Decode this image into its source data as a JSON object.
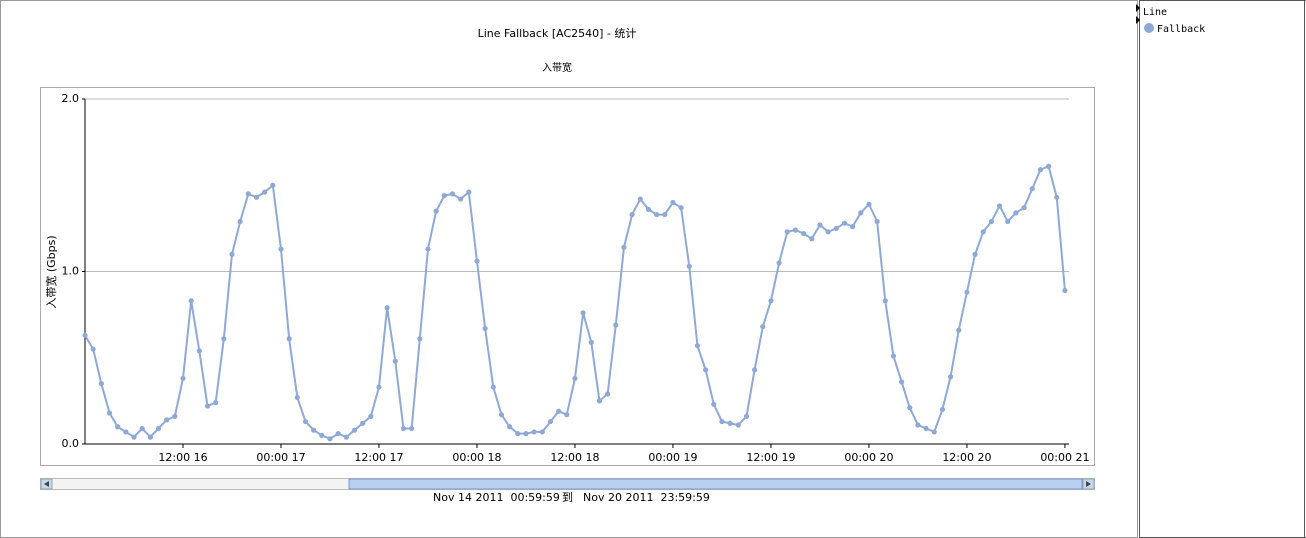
{
  "chart_data": {
    "type": "line",
    "title": "Line Fallback [AC2540] - 统计",
    "subtitle": "入带宽",
    "y_label": "入带宽 (Gbps)",
    "range": {
      "start": "Nov 14 2011  00:59:59",
      "separator": "到",
      "end": "Nov 20 2011  23:59:59"
    },
    "legend_title": "Line",
    "legend": "top-right",
    "grid": true,
    "x": [
      0,
      1,
      2,
      3,
      4,
      5,
      6,
      7,
      8,
      9,
      10,
      11,
      12,
      13,
      14,
      15,
      16,
      17,
      18,
      19,
      20,
      21,
      22,
      23,
      24,
      25,
      26,
      27,
      28,
      29,
      30,
      31,
      32,
      33,
      34,
      35,
      36,
      37,
      38,
      39,
      40,
      41,
      42,
      43,
      44,
      45,
      46,
      47,
      48,
      49,
      50,
      51,
      52,
      53,
      54,
      55,
      56,
      57,
      58,
      59,
      60,
      61,
      62,
      63,
      64,
      65,
      66,
      67,
      68,
      69,
      70,
      71,
      72,
      73,
      74,
      75,
      76,
      77,
      78,
      79,
      80,
      81,
      82,
      83,
      84,
      85,
      86,
      87,
      88,
      89,
      90,
      91,
      92,
      93,
      94,
      95,
      96,
      97,
      98,
      99,
      100,
      101,
      102,
      103,
      104,
      105,
      106,
      107,
      108,
      109,
      110,
      111,
      112,
      113,
      114,
      115,
      116,
      117,
      118,
      119,
      120
    ],
    "series": [
      {
        "name": "Fallback",
        "color": "#8fa9d6",
        "values": [
          0.63,
          0.55,
          0.35,
          0.18,
          0.1,
          0.07,
          0.04,
          0.09,
          0.04,
          0.09,
          0.14,
          0.16,
          0.38,
          0.83,
          0.54,
          0.22,
          0.24,
          0.61,
          1.1,
          1.29,
          1.45,
          1.43,
          1.46,
          1.5,
          1.13,
          0.61,
          0.27,
          0.13,
          0.08,
          0.05,
          0.03,
          0.06,
          0.04,
          0.08,
          0.12,
          0.16,
          0.33,
          0.79,
          0.48,
          0.09,
          0.09,
          0.61,
          1.13,
          1.35,
          1.44,
          1.45,
          1.42,
          1.46,
          1.06,
          0.67,
          0.33,
          0.17,
          0.1,
          0.06,
          0.06,
          0.07,
          0.07,
          0.13,
          0.19,
          0.17,
          0.38,
          0.76,
          0.59,
          0.25,
          0.29,
          0.69,
          1.14,
          1.33,
          1.42,
          1.36,
          1.33,
          1.33,
          1.4,
          1.37,
          1.03,
          0.57,
          0.43,
          0.23,
          0.13,
          0.12,
          0.11,
          0.16,
          0.43,
          0.68,
          0.83,
          1.05,
          1.23,
          1.24,
          1.22,
          1.19,
          1.27,
          1.23,
          1.25,
          1.28,
          1.26,
          1.34,
          1.39,
          1.29,
          0.83,
          0.51,
          0.36,
          0.21,
          0.11,
          0.09,
          0.07,
          0.2,
          0.39,
          0.66,
          0.88,
          1.1,
          1.23,
          1.29,
          1.38,
          1.29,
          1.34,
          1.37,
          1.48,
          1.59,
          1.61,
          1.43,
          0.89
        ]
      }
    ],
    "xlim": [
      0,
      120.5
    ],
    "xticks": [
      {
        "value": 12,
        "label": "12:00 16"
      },
      {
        "value": 24,
        "label": "00:00 17"
      },
      {
        "value": 36,
        "label": "12:00 17"
      },
      {
        "value": 48,
        "label": "00:00 18"
      },
      {
        "value": 60,
        "label": "12:00 18"
      },
      {
        "value": 72,
        "label": "00:00 19"
      },
      {
        "value": 84,
        "label": "12:00 19"
      },
      {
        "value": 96,
        "label": "00:00 20"
      },
      {
        "value": 108,
        "label": "12:00 20"
      },
      {
        "value": 120,
        "label": "00:00 21"
      }
    ],
    "ylim": [
      0,
      2
    ],
    "yticks": [
      {
        "value": 0,
        "label": "0.0"
      },
      {
        "value": 1,
        "label": "1.0"
      },
      {
        "value": 2,
        "label": "2.0"
      }
    ]
  }
}
